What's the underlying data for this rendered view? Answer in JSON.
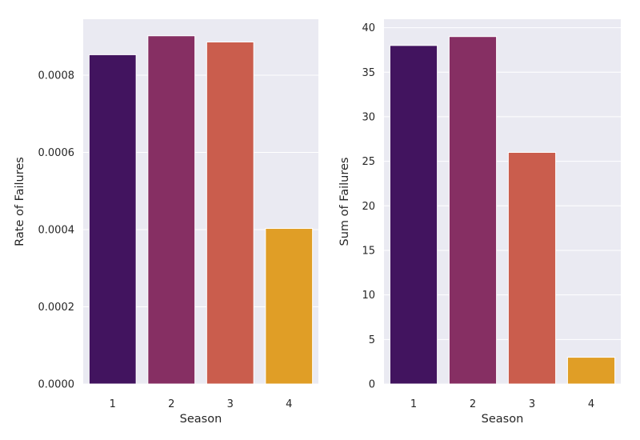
{
  "chart_data": [
    {
      "type": "bar",
      "categories": [
        "1",
        "2",
        "3",
        "4"
      ],
      "values": [
        0.000853,
        0.000902,
        0.000886,
        0.000403
      ],
      "xlabel": "Season",
      "ylabel": "Rate of Failures",
      "ylim": [
        0,
        0.000945
      ],
      "yticks": [
        0.0,
        0.0002,
        0.0004,
        0.0006,
        0.0008
      ],
      "ytick_labels": [
        "0.0000",
        "0.0002",
        "0.0004",
        "0.0006",
        "0.0008"
      ],
      "grid": true,
      "colors": [
        "#42145f",
        "#862f63",
        "#ca5d4d",
        "#e09e26"
      ]
    },
    {
      "type": "bar",
      "categories": [
        "1",
        "2",
        "3",
        "4"
      ],
      "values": [
        38,
        39,
        26,
        3
      ],
      "xlabel": "Season",
      "ylabel": "Sum of Failures",
      "ylim": [
        0,
        40.95
      ],
      "yticks": [
        0,
        5,
        10,
        15,
        20,
        25,
        30,
        35,
        40
      ],
      "ytick_labels": [
        "0",
        "5",
        "10",
        "15",
        "20",
        "25",
        "30",
        "35",
        "40"
      ],
      "grid": true,
      "colors": [
        "#42145f",
        "#862f63",
        "#ca5d4d",
        "#e09e26"
      ]
    }
  ],
  "colors": {
    "plot_background": "#eaeaf2",
    "grid": "#ffffff",
    "text": "#262626"
  }
}
